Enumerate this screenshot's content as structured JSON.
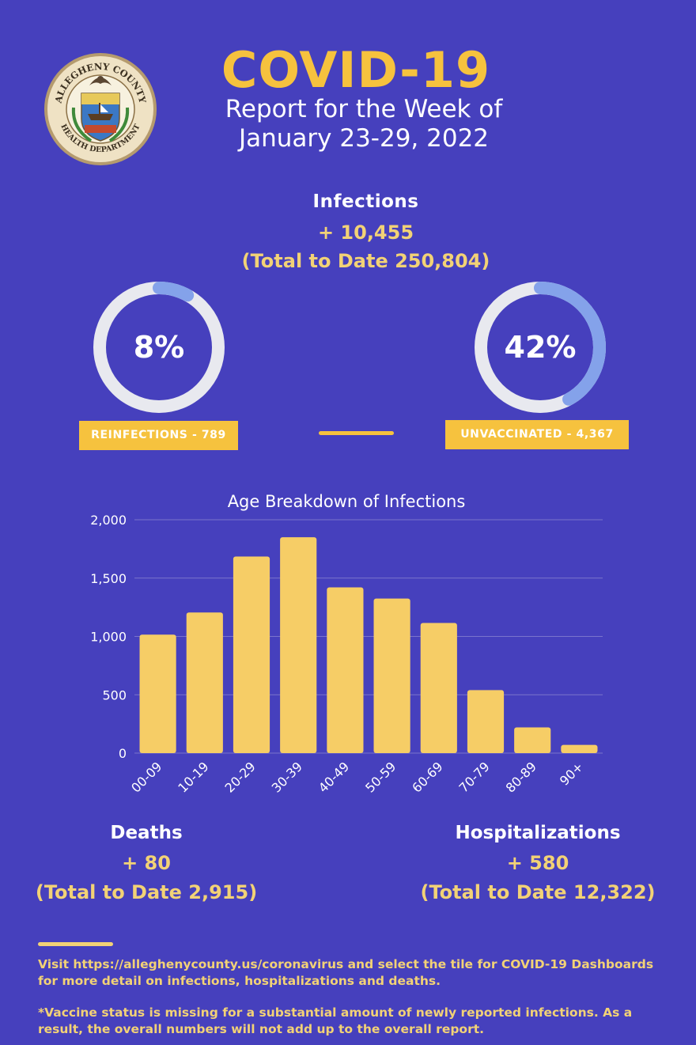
{
  "seal": {
    "text_top": "ALLEGHENY COUNTY",
    "text_bottom": "HEALTH DEPARTMENT"
  },
  "header": {
    "title": "COVID-19",
    "subtitle_line1": "Report for the Week of",
    "subtitle_line2": "January 23-29, 2022"
  },
  "infections": {
    "label": "Infections",
    "weekly": "+ 10,455",
    "total": "(Total to Date 250,804)"
  },
  "reinfections": {
    "percent_label": "8%",
    "percent_value": 0.08,
    "tag": "REINFECTIONS - 789"
  },
  "unvaccinated": {
    "percent_label": "42%",
    "percent_value": 0.42,
    "tag": "UNVACCINATED - 4,367"
  },
  "colors": {
    "background": "#4640bd",
    "accent": "#f6c23e",
    "bar": "#f6cd66",
    "text_gold": "#f2d276",
    "ring_track": "#e8e9ef",
    "ring_fill": "#84a2ea",
    "grid": "#7a74cc"
  },
  "chart_data": {
    "type": "bar",
    "title": "Age Breakdown of Infections",
    "categories": [
      "00-09",
      "10-19",
      "20-29",
      "30-39",
      "40-49",
      "50-59",
      "60-69",
      "70-79",
      "80-89",
      "90+"
    ],
    "values": [
      1015,
      1205,
      1685,
      1850,
      1420,
      1325,
      1115,
      540,
      220,
      70
    ],
    "ylim": [
      0,
      2000
    ],
    "yticks": [
      0,
      500,
      1000,
      1500,
      2000
    ],
    "ytick_labels": [
      "0",
      "500",
      "1,000",
      "1,500",
      "2,000"
    ],
    "grid": true
  },
  "deaths": {
    "label": "Deaths",
    "weekly": "+ 80",
    "total": "(Total to Date 2,915)"
  },
  "hospitalizations": {
    "label": "Hospitalizations",
    "weekly": "+ 580",
    "total": "(Total to Date 12,322)"
  },
  "footer": {
    "line1": "Visit https://alleghenycounty.us/coronavirus and select the tile for COVID-19 Dashboards for more detail on infections, hospitalizations and deaths.",
    "line2": "*Vaccine status is missing for a substantial amount of newly reported infections. As a result, the overall numbers will not add up to the overall report."
  }
}
